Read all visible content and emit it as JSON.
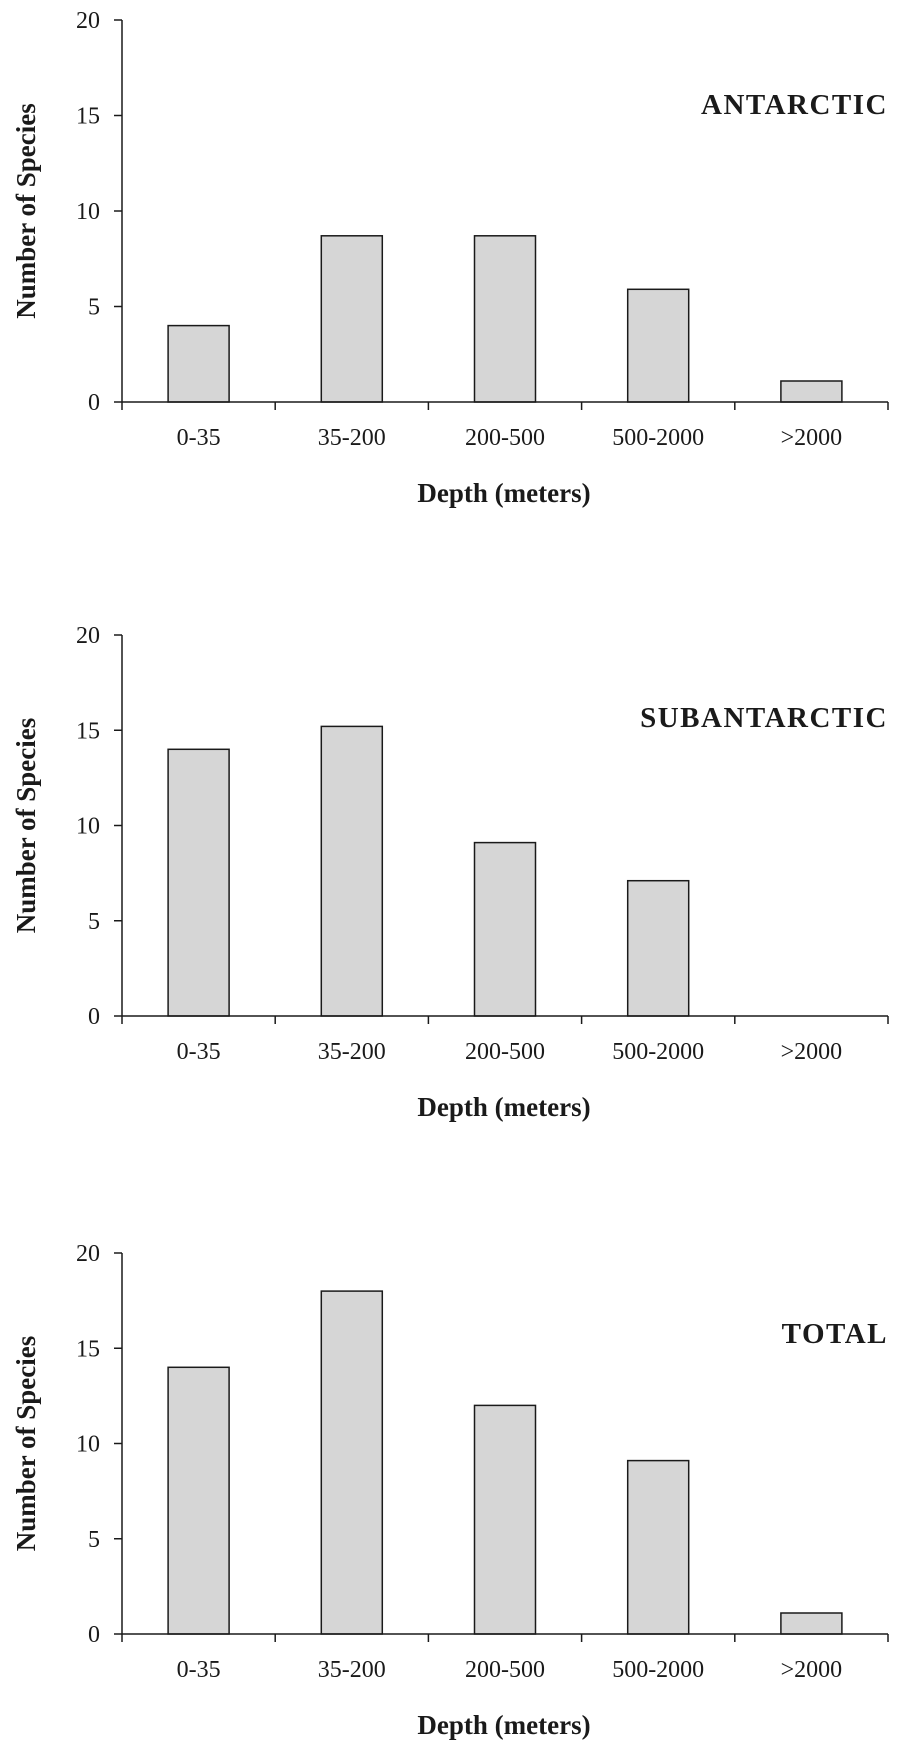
{
  "chart_data": [
    {
      "type": "bar",
      "title": "ANTARCTIC",
      "xlabel": "Depth (meters)",
      "ylabel": "Number of Species",
      "categories": [
        "0-35",
        "35-200",
        "200-500",
        "500-2000",
        ">2000"
      ],
      "values": [
        4,
        8.7,
        8.7,
        5.9,
        1.1
      ],
      "ylim": [
        0,
        20
      ],
      "yticks": [
        "0",
        "5",
        "10",
        "15",
        "20"
      ],
      "grid": false,
      "bar_color": "#d6d6d6"
    },
    {
      "type": "bar",
      "title": "SUBANTARCTIC",
      "xlabel": "Depth (meters)",
      "ylabel": "Number of Species",
      "categories": [
        "0-35",
        "35-200",
        "200-500",
        "500-2000",
        ">2000"
      ],
      "values": [
        14,
        15.2,
        9.1,
        7.1,
        0
      ],
      "ylim": [
        0,
        20
      ],
      "yticks": [
        "0",
        "5",
        "10",
        "15",
        "20"
      ],
      "grid": false,
      "bar_color": "#d6d6d6"
    },
    {
      "type": "bar",
      "title": "TOTAL",
      "xlabel": "Depth (meters)",
      "ylabel": "Number of Species",
      "categories": [
        "0-35",
        "35-200",
        "200-500",
        "500-2000",
        ">2000"
      ],
      "values": [
        14,
        18,
        12,
        9.1,
        1.1
      ],
      "ylim": [
        0,
        20
      ],
      "yticks": [
        "0",
        "5",
        "10",
        "15",
        "20"
      ],
      "grid": false,
      "bar_color": "#d6d6d6"
    }
  ]
}
